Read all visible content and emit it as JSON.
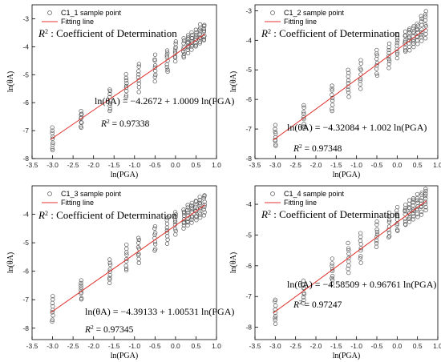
{
  "chart_data": [
    {
      "type": "scatter",
      "xlabel": "ln(PGA)",
      "ylabel": "ln(θA)",
      "xlim": [
        -3.5,
        1.0
      ],
      "ylim": [
        -8,
        -2.5
      ],
      "xticks": [
        "-3.5",
        "-3.0",
        "-2.5",
        "-2.0",
        "-1.5",
        "-1.0",
        "-0.5",
        "0.0",
        "0.5",
        "1.0"
      ],
      "yticks": [
        "-3",
        "-4",
        "-5",
        "-6",
        "-7",
        "-8"
      ],
      "legend": [
        "C1_1 sample point",
        "Fitting line"
      ],
      "r2_title": ": Coefficient of Determination",
      "equation": "ln(θA) = −4.2672 + 1.0009 ln(PGA)",
      "r2_value": "= 0.97338",
      "intercept": -4.2672,
      "slope": 1.0009,
      "x_groups": [
        -3.0,
        -2.3,
        -1.6,
        -1.2,
        -0.9,
        -0.5,
        -0.2,
        0.0,
        0.2,
        0.3,
        0.4,
        0.5,
        0.6,
        0.7
      ],
      "y_spread": [
        -7.7,
        -6.9,
        -6.3,
        -5.8,
        -5.6,
        -5.2,
        -4.9,
        -4.5,
        -4.4,
        -4.2,
        -4.1,
        -4.0,
        -3.9,
        -3.8
      ],
      "y_spread_hi": [
        -6.9,
        -6.3,
        -5.5,
        -5.0,
        -4.6,
        -4.3,
        -4.1,
        -3.8,
        -3.7,
        -3.6,
        -3.5,
        -3.4,
        -3.2,
        -3.2
      ]
    },
    {
      "type": "scatter",
      "xlabel": "ln(PGA)",
      "ylabel": "ln(θA)",
      "xlim": [
        -3.5,
        1.0
      ],
      "ylim": [
        -8,
        -2.8
      ],
      "xticks": [
        "-3.5",
        "-3.0",
        "-2.5",
        "-2.0",
        "-1.5",
        "-1.0",
        "-0.5",
        "0.0",
        "0.5",
        "1.0"
      ],
      "yticks": [
        "-3",
        "-4",
        "-5",
        "-6",
        "-7",
        "-8"
      ],
      "legend": [
        "C1_2 sample point",
        "Fitting line"
      ],
      "r2_title": ": Coefficient of Determination",
      "equation": "ln(θA) = −4.32084 + 1.002 ln(PGA)",
      "r2_value": "= 0.97348",
      "intercept": -4.32084,
      "slope": 1.002,
      "x_groups": [
        -3.0,
        -2.3,
        -1.6,
        -1.2,
        -0.9,
        -0.5,
        -0.2,
        0.0,
        0.2,
        0.3,
        0.4,
        0.5,
        0.6,
        0.7
      ],
      "y_spread": [
        -7.6,
        -7.0,
        -6.4,
        -5.9,
        -5.6,
        -5.2,
        -4.9,
        -4.6,
        -4.4,
        -4.3,
        -4.2,
        -4.1,
        -4.0,
        -3.9
      ],
      "y_spread_hi": [
        -6.9,
        -6.2,
        -5.5,
        -5.0,
        -4.7,
        -4.3,
        -4.1,
        -3.8,
        -3.7,
        -3.6,
        -3.5,
        -3.4,
        -3.2,
        -3.0
      ]
    },
    {
      "type": "scatter",
      "xlabel": "ln(PGA)",
      "ylabel": "ln(θA)",
      "xlim": [
        -3.5,
        1.0
      ],
      "ylim": [
        -8.4,
        -3.0
      ],
      "xticks": [
        "-3.5",
        "-3.0",
        "-2.5",
        "-2.0",
        "-1.5",
        "-1.0",
        "-0.5",
        "0.0",
        "0.5",
        "1.0"
      ],
      "yticks": [
        "-4",
        "-5",
        "-6",
        "-7",
        "-8"
      ],
      "legend": [
        "C1_3 sample point",
        "Fitting line"
      ],
      "r2_title": ": Coefficient of Determination",
      "equation": "ln(θA) = −4.39133 + 1.00531 ln(PGA)",
      "r2_value": "= 0.97345",
      "intercept": -4.39133,
      "slope": 1.00531,
      "x_groups": [
        -3.0,
        -2.3,
        -1.6,
        -1.2,
        -0.9,
        -0.5,
        -0.2,
        0.0,
        0.2,
        0.3,
        0.4,
        0.5,
        0.6,
        0.7
      ],
      "y_spread": [
        -7.8,
        -7.0,
        -6.4,
        -6.0,
        -5.7,
        -5.3,
        -5.0,
        -4.7,
        -4.5,
        -4.4,
        -4.3,
        -4.2,
        -4.1,
        -4.0
      ],
      "y_spread_hi": [
        -6.9,
        -6.3,
        -5.6,
        -5.1,
        -4.8,
        -4.4,
        -4.1,
        -3.9,
        -3.8,
        -3.7,
        -3.6,
        -3.5,
        -3.4,
        -3.3
      ]
    },
    {
      "type": "scatter",
      "xlabel": "ln(PGA)",
      "ylabel": "ln(θA)",
      "xlim": [
        -3.5,
        1.0
      ],
      "ylim": [
        -8.4,
        -3.4
      ],
      "xticks": [
        "-3.5",
        "-3.0",
        "-2.5",
        "-2.0",
        "-1.5",
        "-1.0",
        "-0.5",
        "0.0",
        "0.5",
        "1.0"
      ],
      "yticks": [
        "-4",
        "-5",
        "-6",
        "-7",
        "-8"
      ],
      "legend": [
        "C1_4 sample point",
        "Fitting line"
      ],
      "r2_title": ": Coefficient of Determination",
      "equation": "ln(θA) = −4.58509 + 0.96761 ln(PGA)",
      "r2_value": "= 0.97247",
      "intercept": -4.58509,
      "slope": 0.96761,
      "x_groups": [
        -3.0,
        -2.3,
        -1.6,
        -1.2,
        -0.9,
        -0.5,
        -0.2,
        0.0,
        0.2,
        0.3,
        0.4,
        0.5,
        0.6,
        0.7
      ],
      "y_spread": [
        -7.9,
        -7.2,
        -6.6,
        -6.2,
        -5.9,
        -5.4,
        -5.1,
        -4.9,
        -4.7,
        -4.6,
        -4.5,
        -4.4,
        -4.3,
        -4.2
      ],
      "y_spread_hi": [
        -7.1,
        -6.5,
        -5.8,
        -5.3,
        -4.9,
        -4.6,
        -4.3,
        -4.1,
        -4.0,
        -3.9,
        -3.8,
        -3.7,
        -3.6,
        -3.5
      ]
    }
  ],
  "colors": {
    "fit": "#e0302b",
    "points": "#555555",
    "axis": "#000000"
  }
}
